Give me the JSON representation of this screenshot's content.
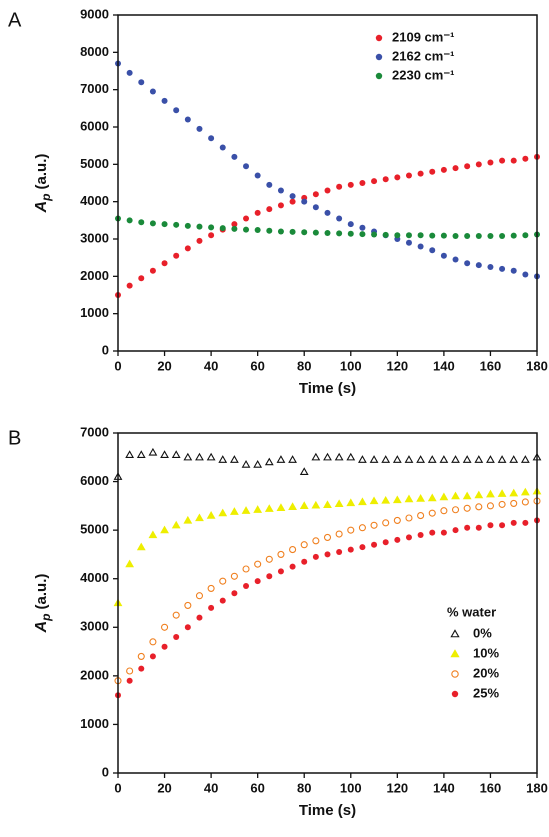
{
  "chart_data": [
    {
      "type": "scatter",
      "panel_label": "A",
      "ylabel_main": "A",
      "ylabel_sub": "p",
      "ylabel_unit": "(a.u.)",
      "xlabel": "Time (s)",
      "xlim": [
        0,
        180
      ],
      "xticks": [
        0,
        20,
        40,
        60,
        80,
        100,
        120,
        140,
        160,
        180
      ],
      "ylim": [
        0,
        9000
      ],
      "yticks": [
        0,
        1000,
        2000,
        3000,
        4000,
        5000,
        6000,
        7000,
        8000,
        9000
      ],
      "legend": "upper right",
      "x": [
        0,
        5,
        10,
        15,
        20,
        25,
        30,
        35,
        40,
        45,
        50,
        55,
        60,
        65,
        70,
        75,
        80,
        85,
        90,
        95,
        100,
        105,
        110,
        115,
        120,
        125,
        130,
        135,
        140,
        145,
        150,
        155,
        160,
        165,
        170,
        175,
        180
      ],
      "series": [
        {
          "name": "2109 cm⁻¹",
          "color": "#e8202a",
          "marker": "circle",
          "fill": true,
          "values": [
            1500,
            1750,
            1950,
            2150,
            2350,
            2550,
            2750,
            2950,
            3100,
            3250,
            3400,
            3550,
            3700,
            3800,
            3900,
            4000,
            4100,
            4200,
            4300,
            4400,
            4450,
            4500,
            4550,
            4600,
            4650,
            4700,
            4750,
            4800,
            4850,
            4900,
            4950,
            5000,
            5050,
            5100,
            5100,
            5150,
            5200
          ]
        },
        {
          "name": "2162 cm⁻¹",
          "color": "#3a50a8",
          "marker": "circle",
          "fill": true,
          "values": [
            7700,
            7450,
            7200,
            6950,
            6700,
            6450,
            6200,
            5950,
            5700,
            5450,
            5200,
            4950,
            4700,
            4450,
            4300,
            4150,
            4000,
            3850,
            3700,
            3550,
            3400,
            3300,
            3200,
            3100,
            3000,
            2900,
            2800,
            2700,
            2550,
            2450,
            2350,
            2300,
            2250,
            2200,
            2150,
            2050,
            2000
          ]
        },
        {
          "name": "2230 cm⁻¹",
          "color": "#1a8a3a",
          "marker": "circle",
          "fill": true,
          "values": [
            3550,
            3500,
            3450,
            3420,
            3400,
            3380,
            3350,
            3330,
            3310,
            3290,
            3270,
            3250,
            3240,
            3220,
            3200,
            3190,
            3180,
            3170,
            3160,
            3150,
            3140,
            3130,
            3120,
            3110,
            3100,
            3100,
            3100,
            3090,
            3090,
            3080,
            3080,
            3080,
            3080,
            3080,
            3090,
            3100,
            3120
          ]
        }
      ]
    },
    {
      "type": "scatter",
      "panel_label": "B",
      "ylabel_main": "A",
      "ylabel_sub": "p",
      "ylabel_unit": "(a.u.)",
      "xlabel": "Time (s)",
      "xlim": [
        0,
        180
      ],
      "xticks": [
        0,
        20,
        40,
        60,
        80,
        100,
        120,
        140,
        160,
        180
      ],
      "ylim": [
        0,
        7000
      ],
      "yticks": [
        0,
        1000,
        2000,
        3000,
        4000,
        5000,
        6000,
        7000
      ],
      "legend": "lower right",
      "legend_title": "% water",
      "x": [
        0,
        5,
        10,
        15,
        20,
        25,
        30,
        35,
        40,
        45,
        50,
        55,
        60,
        65,
        70,
        75,
        80,
        85,
        90,
        95,
        100,
        105,
        110,
        115,
        120,
        125,
        130,
        135,
        140,
        145,
        150,
        155,
        160,
        165,
        170,
        175,
        180
      ],
      "series": [
        {
          "name": "0%",
          "color": "#111111",
          "marker": "triangle",
          "fill": false,
          "values": [
            6100,
            6550,
            6550,
            6600,
            6550,
            6550,
            6500,
            6500,
            6500,
            6450,
            6450,
            6350,
            6350,
            6400,
            6450,
            6450,
            6200,
            6500,
            6500,
            6500,
            6500,
            6450,
            6450,
            6450,
            6450,
            6450,
            6450,
            6450,
            6450,
            6450,
            6450,
            6450,
            6450,
            6450,
            6450,
            6450,
            6500
          ]
        },
        {
          "name": "10%",
          "color": "#eeee00",
          "marker": "triangle",
          "fill": true,
          "values": [
            3500,
            4300,
            4650,
            4900,
            5000,
            5100,
            5200,
            5250,
            5300,
            5350,
            5380,
            5400,
            5420,
            5440,
            5460,
            5480,
            5500,
            5510,
            5520,
            5540,
            5560,
            5580,
            5600,
            5610,
            5620,
            5640,
            5650,
            5660,
            5680,
            5700,
            5700,
            5720,
            5740,
            5750,
            5760,
            5780,
            5800
          ]
        },
        {
          "name": "20%",
          "color": "#f08020",
          "marker": "circle",
          "fill": false,
          "values": [
            1900,
            2100,
            2400,
            2700,
            3000,
            3250,
            3450,
            3650,
            3800,
            3950,
            4050,
            4200,
            4300,
            4400,
            4500,
            4600,
            4700,
            4780,
            4850,
            4920,
            5000,
            5050,
            5100,
            5150,
            5200,
            5250,
            5300,
            5350,
            5400,
            5420,
            5450,
            5480,
            5500,
            5530,
            5550,
            5580,
            5600
          ]
        },
        {
          "name": "25%",
          "color": "#e8202a",
          "marker": "circle",
          "fill": true,
          "values": [
            1600,
            1900,
            2150,
            2400,
            2600,
            2800,
            3000,
            3200,
            3400,
            3550,
            3700,
            3850,
            3950,
            4050,
            4150,
            4250,
            4350,
            4450,
            4500,
            4550,
            4600,
            4650,
            4700,
            4750,
            4800,
            4850,
            4900,
            4950,
            4950,
            5000,
            5050,
            5050,
            5100,
            5100,
            5150,
            5150,
            5200
          ]
        }
      ]
    }
  ]
}
